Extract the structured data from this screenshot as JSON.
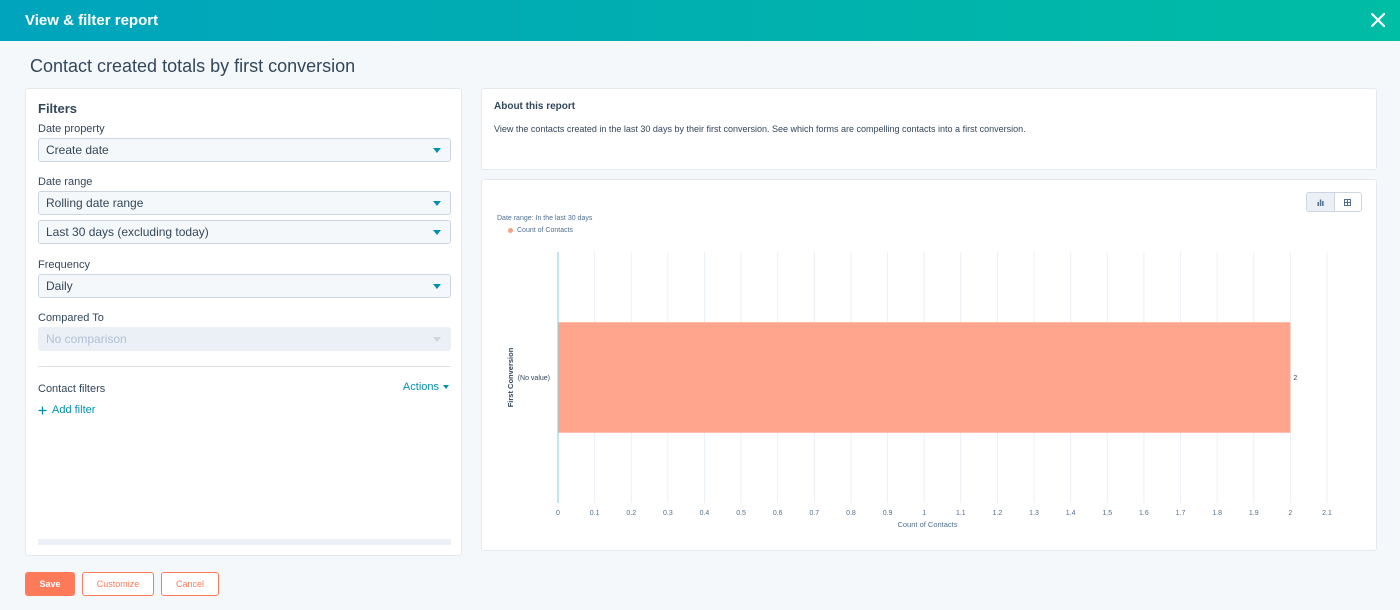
{
  "header": {
    "title": "View & filter report"
  },
  "page_title": "Contact created totals by first conversion",
  "filters": {
    "heading": "Filters",
    "date_property": {
      "label": "Date property",
      "value": "Create date"
    },
    "date_range": {
      "label": "Date range",
      "value": "Rolling date range",
      "sub_value": "Last 30 days (excluding today)"
    },
    "frequency": {
      "label": "Frequency",
      "value": "Daily"
    },
    "compared_to": {
      "label": "Compared To",
      "value": "No comparison"
    },
    "contact_filters": {
      "label": "Contact filters",
      "actions": "Actions",
      "add_filter": "Add filter"
    }
  },
  "about": {
    "title": "About this report",
    "description": "View the contacts created in the last 30 days by their first conversion. See which forms are compelling contacts into a first conversion."
  },
  "chart_panel": {
    "date_range_note": "Date range: In the last 30 days",
    "view_toggle": [
      "bar-chart-icon",
      "table-icon"
    ]
  },
  "chart_data": {
    "type": "bar",
    "orientation": "horizontal",
    "categories": [
      "(No value)"
    ],
    "series": [
      {
        "name": "Count of Contacts",
        "values": [
          2
        ],
        "color": "#ffa58d"
      }
    ],
    "xlabel": "Count of Contacts",
    "ylabel": "First Conversion",
    "xlim": [
      0,
      2.1
    ],
    "xticks": [
      0,
      0.1,
      0.2,
      0.3,
      0.4,
      0.5,
      0.6,
      0.7,
      0.8,
      0.9,
      1,
      1.1,
      1.2,
      1.3,
      1.4,
      1.5,
      1.6,
      1.7,
      1.8,
      1.9,
      2,
      2.1
    ],
    "data_labels": [
      "2"
    ],
    "legend": "top-left",
    "grid": true
  },
  "footer": {
    "save": "Save",
    "customize": "Customize",
    "cancel": "Cancel"
  },
  "colors": {
    "header_start": "#00a4bd",
    "header_end": "#00bda5",
    "primary": "#ff7a59",
    "link": "#0091ae",
    "bar": "#ffa58d"
  }
}
